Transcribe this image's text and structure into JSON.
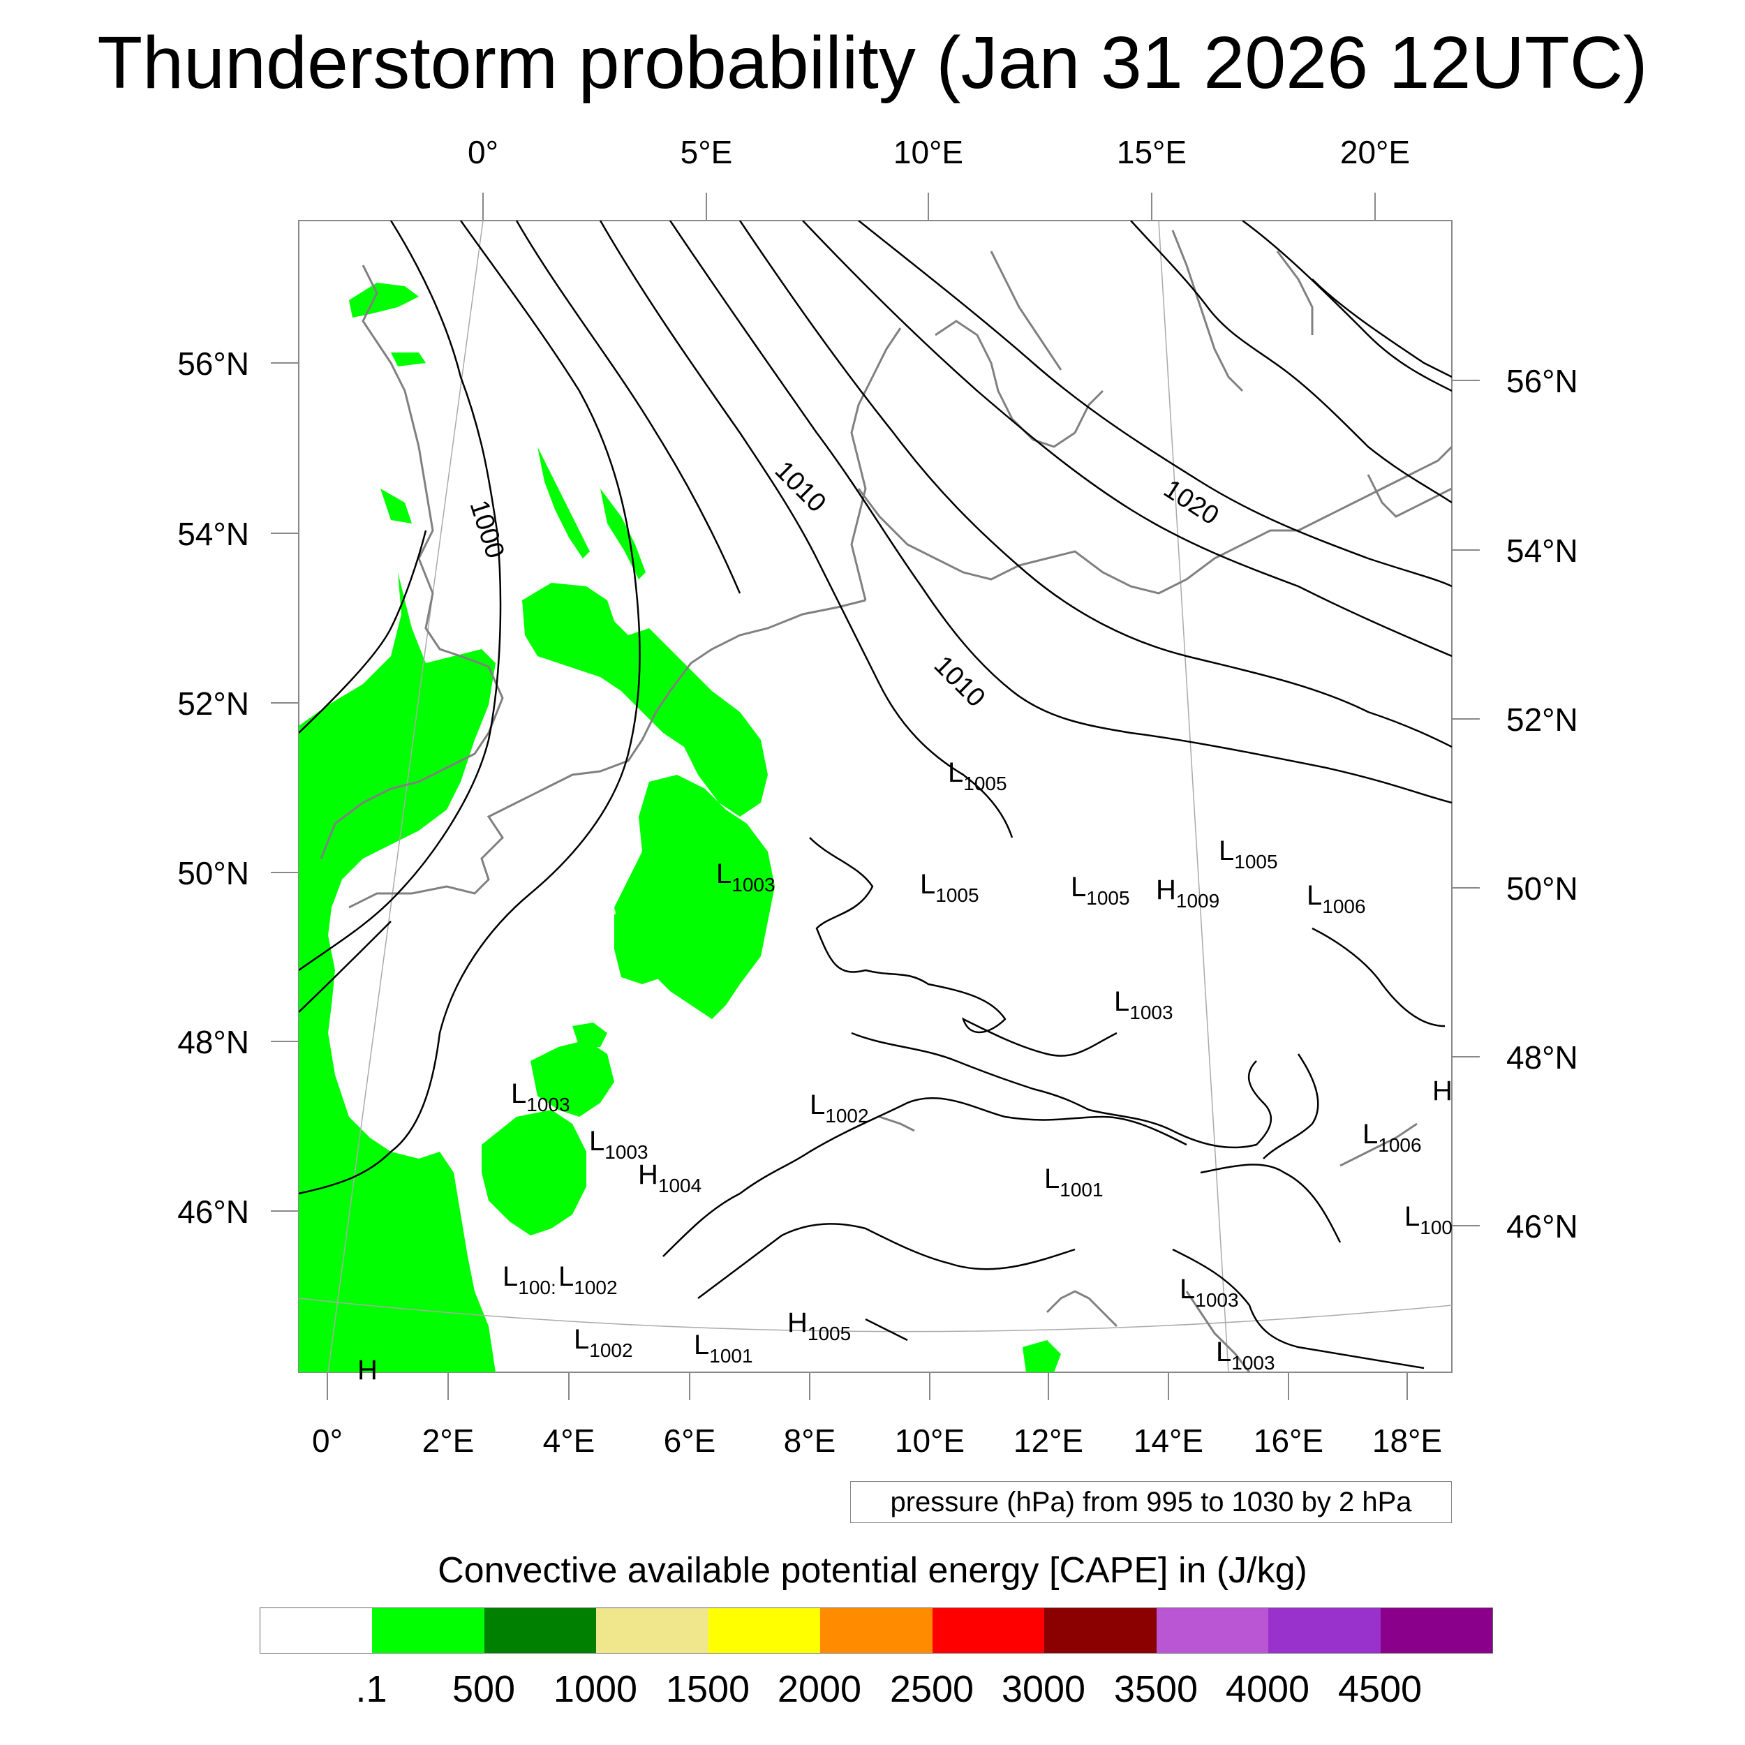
{
  "title": "Thunderstorm probability (Jan 31 2026 12UTC)",
  "top_lon_labels": [
    "0°",
    "5°E",
    "10°E",
    "15°E",
    "20°E"
  ],
  "bottom_lon_labels": [
    "0°",
    "2°E",
    "4°E",
    "6°E",
    "8°E",
    "10°E",
    "12°E",
    "14°E",
    "16°E",
    "18°E"
  ],
  "left_lat_labels": [
    "56°N",
    "54°N",
    "52°N",
    "50°N",
    "48°N",
    "46°N"
  ],
  "right_lat_labels": [
    "56°N",
    "54°N",
    "52°N",
    "50°N",
    "48°N",
    "46°N"
  ],
  "isobar_labels": [
    "1000",
    "1010",
    "1010",
    "1020"
  ],
  "pressure_centers": [
    {
      "kind": "L",
      "value": "1005"
    },
    {
      "kind": "L",
      "value": "1005"
    },
    {
      "kind": "L",
      "value": "1003"
    },
    {
      "kind": "L",
      "value": "1005"
    },
    {
      "kind": "L",
      "value": "1005"
    },
    {
      "kind": "H",
      "value": "1009"
    },
    {
      "kind": "L",
      "value": "1006"
    },
    {
      "kind": "L",
      "value": "1003"
    },
    {
      "kind": "L",
      "value": "1003"
    },
    {
      "kind": "L",
      "value": "1003"
    },
    {
      "kind": "H",
      "value": "1004"
    },
    {
      "kind": "L",
      "value": "1002"
    },
    {
      "kind": "L",
      "value": "1001"
    },
    {
      "kind": "L",
      "value": "1006"
    },
    {
      "kind": "H",
      "value": ""
    },
    {
      "kind": "L",
      "value": "100"
    },
    {
      "kind": "L",
      "value": "100:"
    },
    {
      "kind": "L",
      "value": "1002"
    },
    {
      "kind": "L",
      "value": "1002"
    },
    {
      "kind": "L",
      "value": "1001"
    },
    {
      "kind": "H",
      "value": "1005"
    },
    {
      "kind": "L",
      "value": "1003"
    },
    {
      "kind": "L",
      "value": "1003"
    },
    {
      "kind": "H",
      "value": ""
    }
  ],
  "pressure_note": "pressure (hPa) from 995 to 1030 by 2 hPa",
  "colorbar": {
    "title": "Convective available potential energy [CAPE] in (J/kg)",
    "colors": [
      "#ffffff",
      "#00ff00",
      "#008000",
      "#f0e68c",
      "#ffff00",
      "#ff8c00",
      "#ff0000",
      "#8b0000",
      "#ba55d3",
      "#9932cc",
      "#8b008b"
    ],
    "tick_labels": [
      ".1",
      "500",
      "1000",
      "1500",
      "2000",
      "2500",
      "3000",
      "3500",
      "4000",
      "4500"
    ]
  },
  "cape_fill_color": "#00ff00",
  "isobar_color": "#000000",
  "coastline_color": "#808080"
}
